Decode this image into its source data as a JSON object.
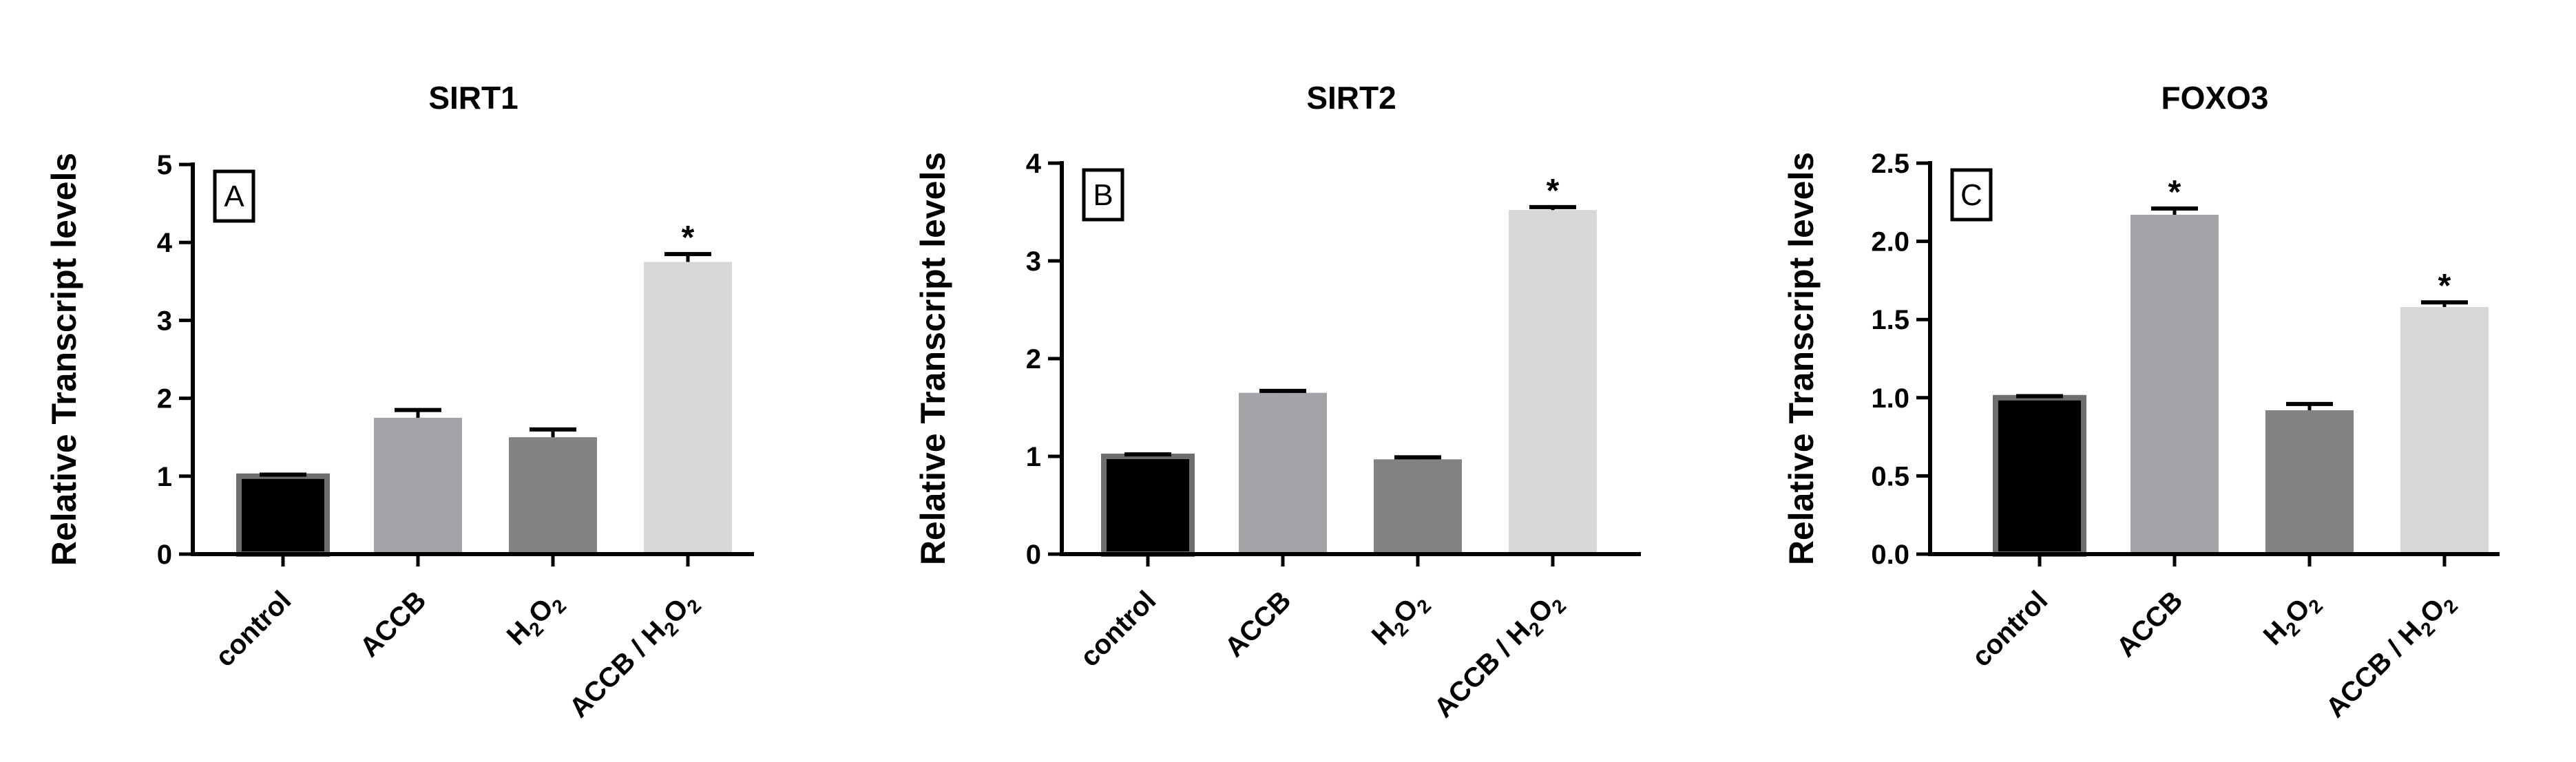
{
  "chart_data": [
    {
      "type": "bar",
      "title": "SIRT1",
      "panel_label": "A",
      "ylabel": "Relative Transcript levels",
      "xlabel": "",
      "ylim": [
        0,
        5
      ],
      "yticks": [
        0,
        1,
        2,
        3,
        4,
        5
      ],
      "ytick_labels": [
        "0",
        "1",
        "2",
        "3",
        "4",
        "5"
      ],
      "categories": [
        {
          "text": "control",
          "sub": []
        },
        {
          "text": "ACCB",
          "sub": []
        },
        {
          "text": "H",
          "sub": [
            "2",
            "O",
            "2"
          ]
        },
        {
          "text": "ACCB / H",
          "sub": [
            "2",
            "O",
            "2"
          ]
        }
      ],
      "values": [
        1.0,
        1.75,
        1.5,
        3.75
      ],
      "errors": [
        0.02,
        0.1,
        0.1,
        0.1
      ],
      "significance": [
        "",
        "",
        "",
        "*"
      ],
      "colors": [
        "#000000",
        "#a4a3a8",
        "#828282",
        "#d7d7d7"
      ],
      "grid": false
    },
    {
      "type": "bar",
      "title": "SIRT2",
      "panel_label": "B",
      "ylabel": "Relative Transcript levels",
      "xlabel": "",
      "ylim": [
        0,
        4
      ],
      "yticks": [
        0,
        1,
        2,
        3,
        4
      ],
      "ytick_labels": [
        "0",
        "1",
        "2",
        "3",
        "4"
      ],
      "categories": [
        {
          "text": "control",
          "sub": []
        },
        {
          "text": "ACCB",
          "sub": []
        },
        {
          "text": "H",
          "sub": [
            "2",
            "O",
            "2"
          ]
        },
        {
          "text": "ACCB / H",
          "sub": [
            "2",
            "O",
            "2"
          ]
        }
      ],
      "values": [
        1.0,
        1.65,
        0.97,
        3.52
      ],
      "errors": [
        0.02,
        0.02,
        0.02,
        0.03
      ],
      "significance": [
        "",
        "",
        "",
        "*"
      ],
      "colors": [
        "#000000",
        "#a4a3a8",
        "#828282",
        "#d7d7d7"
      ],
      "grid": false
    },
    {
      "type": "bar",
      "title": "FOXO3",
      "panel_label": "C",
      "ylabel": "Relative Transcript levels",
      "xlabel": "",
      "ylim": [
        0,
        2.5
      ],
      "yticks": [
        0,
        0.5,
        1,
        1.5,
        2,
        2.5
      ],
      "ytick_labels": [
        "0.0",
        "0.5",
        "1.0",
        "1.5",
        "2.0",
        "2.5"
      ],
      "categories": [
        {
          "text": "control",
          "sub": []
        },
        {
          "text": "ACCB",
          "sub": []
        },
        {
          "text": "H",
          "sub": [
            "2",
            "O",
            "2"
          ]
        },
        {
          "text": "ACCB / H",
          "sub": [
            "2",
            "O",
            "2"
          ]
        }
      ],
      "values": [
        1.0,
        2.17,
        0.92,
        1.58
      ],
      "errors": [
        0.01,
        0.04,
        0.04,
        0.03
      ],
      "significance": [
        "",
        "*",
        "",
        "*"
      ],
      "colors": [
        "#000000",
        "#a4a3a8",
        "#828282",
        "#d7d7d7"
      ],
      "grid": false
    }
  ]
}
